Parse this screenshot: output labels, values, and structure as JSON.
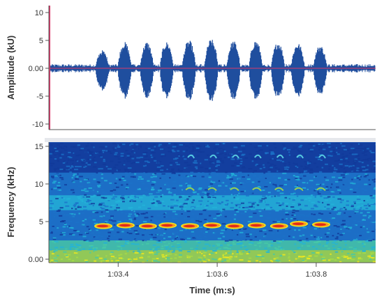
{
  "chart_data": [
    {
      "type": "line",
      "title": "",
      "xlabel": "",
      "ylabel": "Amplitude (kU)",
      "ylim": [
        -12,
        12
      ],
      "yticks": [
        10,
        5,
        0.0,
        -5,
        -10
      ],
      "ytick_labels": [
        "10",
        "5",
        "0.00",
        "-5",
        "-10"
      ],
      "xlim": [
        63.26,
        63.92
      ],
      "grid": false,
      "series": [
        {
          "name": "",
          "bursts": [
            {
              "t": 63.37,
              "amp": 3.5
            },
            {
              "t": 63.415,
              "amp": 5.0
            },
            {
              "t": 63.46,
              "amp": 5.0
            },
            {
              "t": 63.5,
              "amp": 5.0
            },
            {
              "t": 63.545,
              "amp": 5.3
            },
            {
              "t": 63.59,
              "amp": 5.5
            },
            {
              "t": 63.635,
              "amp": 5.2
            },
            {
              "t": 63.68,
              "amp": 5.3
            },
            {
              "t": 63.725,
              "amp": 5.0
            },
            {
              "t": 63.765,
              "amp": 4.8
            },
            {
              "t": 63.81,
              "amp": 4.4
            }
          ],
          "noise_level": 0.5
        }
      ]
    },
    {
      "type": "heatmap",
      "title": "",
      "xlabel": "Time (m:s)",
      "ylabel": "Frequency (kHz)",
      "ylim": [
        -0.5,
        15.5
      ],
      "yticks": [
        15,
        10,
        5,
        0.0
      ],
      "ytick_labels": [
        "15",
        "10",
        "5",
        "0.00"
      ],
      "xlim": [
        63.26,
        63.92
      ],
      "xticks": [
        63.4,
        63.6,
        63.8
      ],
      "xtick_labels": [
        "1:03.4",
        "1:03.6",
        "1:03.8"
      ],
      "colormap": [
        "#123a9a",
        "#1c72c8",
        "#23b3d8",
        "#46c9a8",
        "#a6dc46",
        "#f2ea1c",
        "#f89a1c",
        "#e02a1a"
      ],
      "fundamental": [
        {
          "t": 63.37,
          "khz": 4.4
        },
        {
          "t": 63.415,
          "khz": 4.5
        },
        {
          "t": 63.46,
          "khz": 4.4
        },
        {
          "t": 63.5,
          "khz": 4.5
        },
        {
          "t": 63.545,
          "khz": 4.4
        },
        {
          "t": 63.59,
          "khz": 4.5
        },
        {
          "t": 63.635,
          "khz": 4.4
        },
        {
          "t": 63.68,
          "khz": 4.5
        },
        {
          "t": 63.725,
          "khz": 4.4
        },
        {
          "t": 63.765,
          "khz": 4.7
        },
        {
          "t": 63.81,
          "khz": 4.6
        }
      ],
      "harmonic_2_khz": 9.4,
      "harmonic_3_khz": 13.7
    }
  ]
}
